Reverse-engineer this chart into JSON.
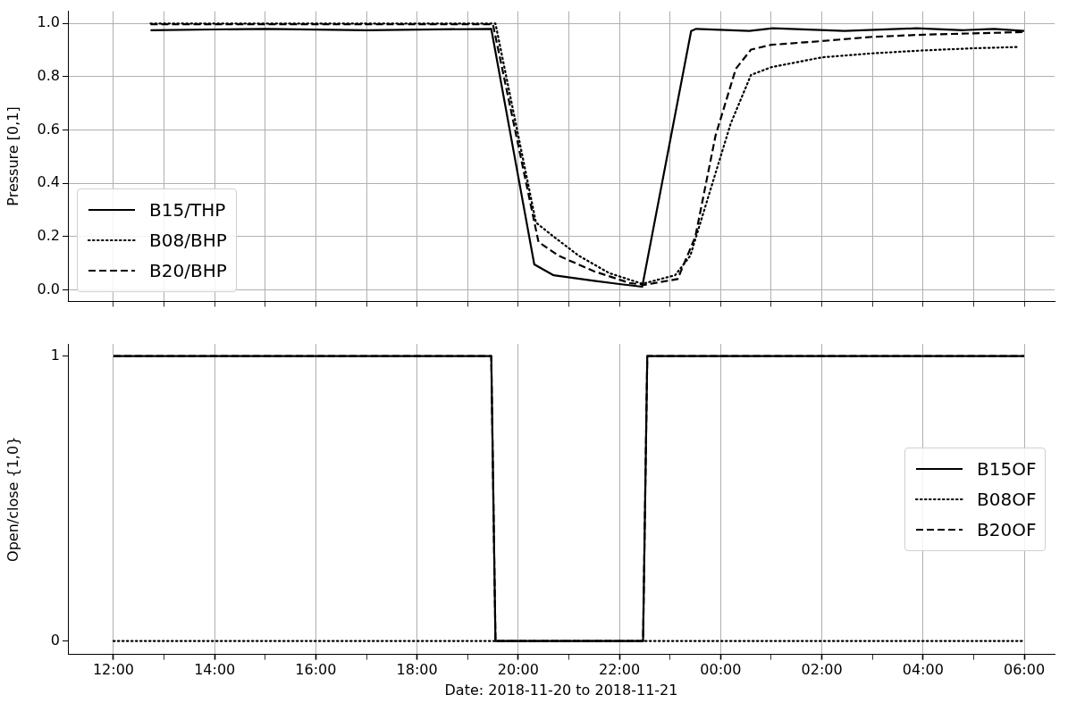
{
  "chart_data": [
    {
      "type": "line",
      "ylabel": "Pressure [0,1]",
      "xlim": [
        "2018-11-20T11:06",
        "2018-11-21T06:36"
      ],
      "ylim": [
        -0.043,
        1.046
      ],
      "xticks": [
        {
          "value": "2018-11-20T12:00",
          "label": null
        },
        {
          "value": "2018-11-20T13:00",
          "label": null
        },
        {
          "value": "2018-11-20T14:00",
          "label": null
        },
        {
          "value": "2018-11-20T15:00",
          "label": null
        },
        {
          "value": "2018-11-20T16:00",
          "label": null
        },
        {
          "value": "2018-11-20T17:00",
          "label": null
        },
        {
          "value": "2018-11-20T18:00",
          "label": null
        },
        {
          "value": "2018-11-20T19:00",
          "label": null
        },
        {
          "value": "2018-11-20T20:00",
          "label": null
        },
        {
          "value": "2018-11-20T21:00",
          "label": null
        },
        {
          "value": "2018-11-20T22:00",
          "label": null
        },
        {
          "value": "2018-11-20T23:00",
          "label": null
        },
        {
          "value": "2018-11-21T00:00",
          "label": null
        },
        {
          "value": "2018-11-21T01:00",
          "label": null
        },
        {
          "value": "2018-11-21T02:00",
          "label": null
        },
        {
          "value": "2018-11-21T03:00",
          "label": null
        },
        {
          "value": "2018-11-21T04:00",
          "label": null
        },
        {
          "value": "2018-11-21T05:00",
          "label": null
        },
        {
          "value": "2018-11-21T06:00",
          "label": null
        }
      ],
      "yticks": [
        {
          "value": 0,
          "label": "0.0"
        },
        {
          "value": 0.2,
          "label": "0.2"
        },
        {
          "value": 0.4,
          "label": "0.4"
        },
        {
          "value": 0.6,
          "label": "0.6"
        },
        {
          "value": 0.8,
          "label": "0.8"
        },
        {
          "value": 1,
          "label": "1.0"
        }
      ],
      "tick_labels": "y",
      "grid": true,
      "legend": "bottom left",
      "series": [
        {
          "name": "B15/THP",
          "color": "#000000",
          "line_style": "solid",
          "x": [
            "2018-11-20T12:44",
            "2018-11-20T15:00",
            "2018-11-20T17:00",
            "2018-11-20T19:28",
            "2018-11-20T20:19",
            "2018-11-20T20:42",
            "2018-11-20T21:30",
            "2018-11-20T22:00",
            "2018-11-20T22:27",
            "2018-11-20T23:25",
            "2018-11-20T23:31",
            "2018-11-21T00:34",
            "2018-11-21T01:02",
            "2018-11-21T02:27",
            "2018-11-21T03:52",
            "2018-11-21T04:48",
            "2018-11-21T05:24",
            "2018-11-21T06:00"
          ],
          "values": [
            0.975,
            0.98,
            0.975,
            0.98,
            0.096,
            0.055,
            0.034,
            0.022,
            0.012,
            0.972,
            0.98,
            0.972,
            0.982,
            0.972,
            0.982,
            0.975,
            0.98,
            0.972
          ]
        },
        {
          "name": "B08/BHP",
          "color": "#000000",
          "line_style": "dotted",
          "x": [
            "2018-11-20T12:44",
            "2018-11-20T19:33",
            "2018-11-20T20:21",
            "2018-11-20T20:42",
            "2018-11-20T21:12",
            "2018-11-20T21:48",
            "2018-11-20T22:27",
            "2018-11-20T23:06",
            "2018-11-20T23:24",
            "2018-11-20T23:48",
            "2018-11-21T00:12",
            "2018-11-21T00:36",
            "2018-11-21T01:00",
            "2018-11-21T02:00",
            "2018-11-21T03:00",
            "2018-11-21T04:00",
            "2018-11-21T05:00",
            "2018-11-21T05:54"
          ],
          "values": [
            1,
            1,
            0.253,
            0.2,
            0.128,
            0.063,
            0.023,
            0.055,
            0.128,
            0.377,
            0.625,
            0.807,
            0.836,
            0.873,
            0.888,
            0.899,
            0.907,
            0.912
          ]
        },
        {
          "name": "B20/BHP",
          "color": "#000000",
          "line_style": "dashed",
          "x": [
            "2018-11-20T12:44",
            "2018-11-20T19:30",
            "2018-11-20T20:24",
            "2018-11-20T20:48",
            "2018-11-20T21:30",
            "2018-11-20T22:12",
            "2018-11-20T22:30",
            "2018-11-20T23:09",
            "2018-11-20T23:30",
            "2018-11-20T23:54",
            "2018-11-21T00:18",
            "2018-11-21T00:36",
            "2018-11-21T01:00",
            "2018-11-21T02:00",
            "2018-11-21T03:00",
            "2018-11-21T04:00",
            "2018-11-21T05:00",
            "2018-11-21T06:00"
          ],
          "values": [
            0.997,
            0.997,
            0.18,
            0.128,
            0.07,
            0.026,
            0.019,
            0.041,
            0.2,
            0.58,
            0.83,
            0.902,
            0.92,
            0.934,
            0.95,
            0.958,
            0.963,
            0.968
          ]
        }
      ]
    },
    {
      "type": "line",
      "xlabel": "Date: 2018-11-20 to 2018-11-21",
      "ylabel": "Open/close {1,0}",
      "xlim": [
        "2018-11-20T11:06",
        "2018-11-21T06:36"
      ],
      "ylim": [
        -0.047,
        1.043
      ],
      "xticks": [
        {
          "value": "2018-11-20T12:00",
          "label": "12:00"
        },
        {
          "value": "2018-11-20T13:00",
          "label": null
        },
        {
          "value": "2018-11-20T14:00",
          "label": "14:00"
        },
        {
          "value": "2018-11-20T15:00",
          "label": null
        },
        {
          "value": "2018-11-20T16:00",
          "label": "16:00"
        },
        {
          "value": "2018-11-20T17:00",
          "label": null
        },
        {
          "value": "2018-11-20T18:00",
          "label": "18:00"
        },
        {
          "value": "2018-11-20T19:00",
          "label": null
        },
        {
          "value": "2018-11-20T20:00",
          "label": "20:00"
        },
        {
          "value": "2018-11-20T21:00",
          "label": null
        },
        {
          "value": "2018-11-20T22:00",
          "label": "22:00"
        },
        {
          "value": "2018-11-20T23:00",
          "label": null
        },
        {
          "value": "2018-11-21T00:00",
          "label": "00:00"
        },
        {
          "value": "2018-11-21T01:00",
          "label": null
        },
        {
          "value": "2018-11-21T02:00",
          "label": "02:00"
        },
        {
          "value": "2018-11-21T03:00",
          "label": null
        },
        {
          "value": "2018-11-21T04:00",
          "label": "04:00"
        },
        {
          "value": "2018-11-21T05:00",
          "label": null
        },
        {
          "value": "2018-11-21T06:00",
          "label": "06:00"
        }
      ],
      "yticks": [
        0,
        1
      ],
      "grid": "x",
      "legend": "right",
      "series": [
        {
          "name": "B15OF",
          "color": "#000000",
          "line_style": "solid",
          "x": [
            "2018-11-20T12:00",
            "2018-11-20T19:28",
            "2018-11-20T19:33",
            "2018-11-20T22:28",
            "2018-11-20T22:33",
            "2018-11-21T06:00"
          ],
          "values": [
            1,
            1,
            0,
            0,
            1,
            1
          ]
        },
        {
          "name": "B08OF",
          "color": "#000000",
          "line_style": "dotted",
          "x": [
            "2018-11-20T12:00",
            "2018-11-21T06:00"
          ],
          "values": [
            0,
            0
          ]
        },
        {
          "name": "B20OF",
          "color": "#000000",
          "line_style": "dashed",
          "x": [
            "2018-11-20T12:00",
            "2018-11-20T19:28",
            "2018-11-20T19:33",
            "2018-11-20T22:28",
            "2018-11-20T22:33",
            "2018-11-21T06:00"
          ],
          "values": [
            1,
            1,
            0,
            0,
            1,
            1
          ]
        }
      ]
    }
  ]
}
